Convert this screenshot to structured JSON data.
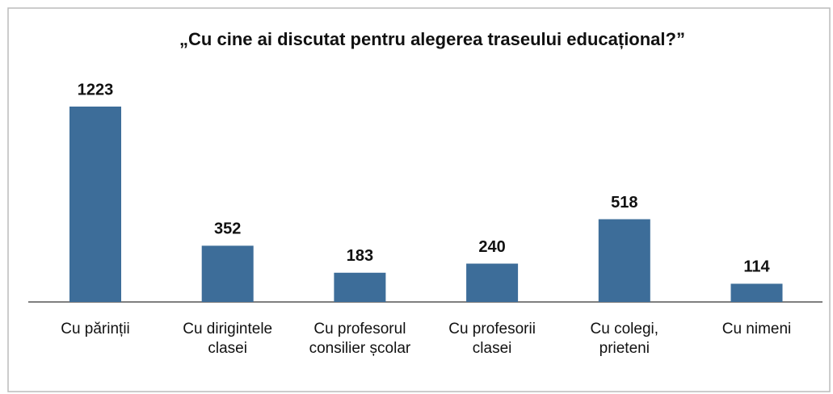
{
  "chart_data": {
    "type": "bar",
    "title": "„Cu cine ai discutat pentru alegerea traseului educațional?”",
    "categories": [
      "Cu părinții",
      "Cu dirigintele clasei",
      "Cu profesorul consilier școlar",
      "Cu profesorii clasei",
      "Cu colegi, prieteni",
      "Cu nimeni"
    ],
    "values": [
      1223,
      352,
      183,
      240,
      518,
      114
    ],
    "color": "#3d6d99"
  }
}
